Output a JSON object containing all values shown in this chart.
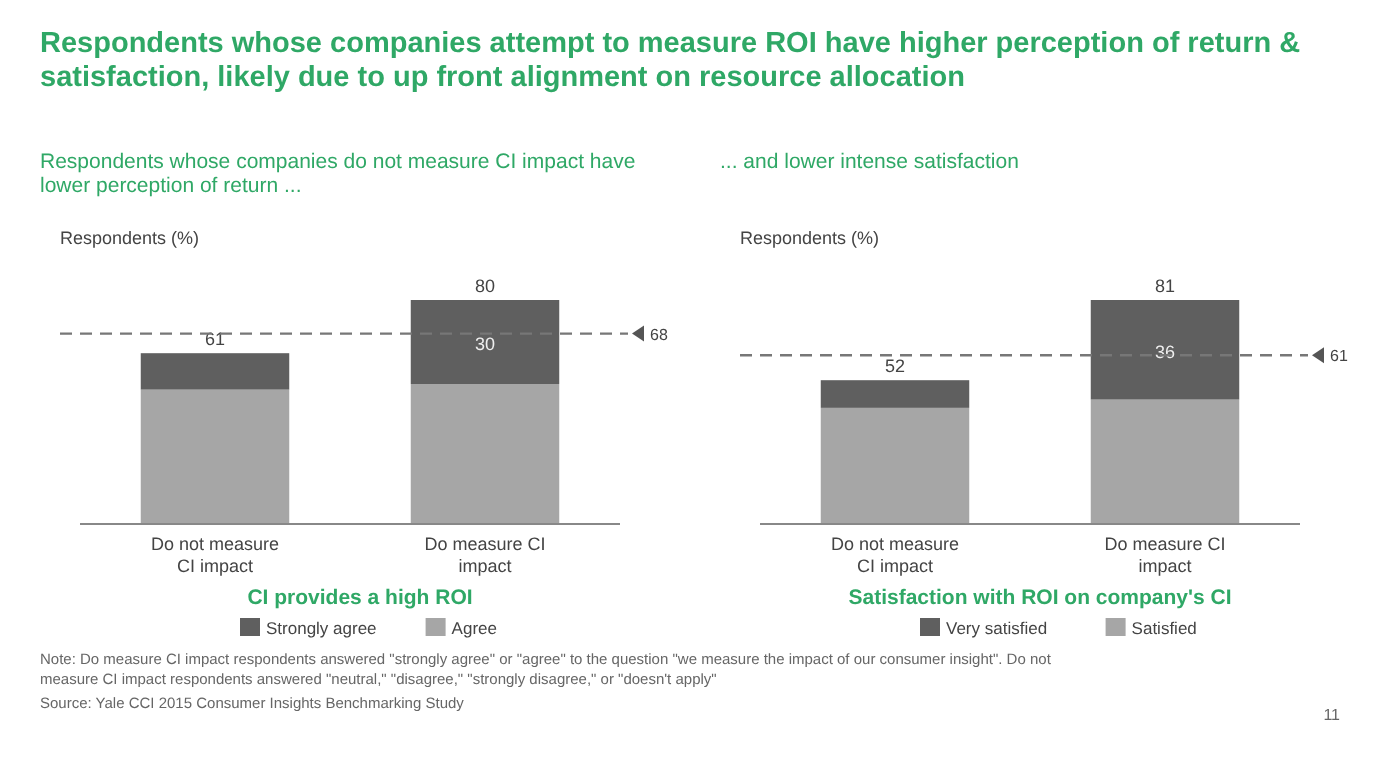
{
  "chart_data": [
    {
      "type": "bar",
      "stacked": true,
      "title": "Respondents whose companies attempt to measure ROI have higher perception of return & satisfaction, likely due to up front alignment on resource allocation",
      "subtitle": "Respondents whose companies do not measure CI impact have lower perception of return ...",
      "ylabel": "Respondents (%)",
      "xlabel": "CI provides a high ROI",
      "categories": [
        "Do not measure CI impact",
        "Do measure CI impact"
      ],
      "series": [
        {
          "name": "Agree",
          "color": "#a6a6a6",
          "values": [
            48,
            50
          ]
        },
        {
          "name": "Strongly agree",
          "color": "#5f5f5f",
          "values": [
            13,
            30
          ],
          "value_labels": [
            null,
            "30"
          ]
        }
      ],
      "totals": [
        "61",
        "80"
      ],
      "ref_lines": [
        {
          "axis": "y",
          "value": 68,
          "label": "68",
          "color": "#777777",
          "line_style": "dashed"
        }
      ],
      "legend": "bottom",
      "annotations": [
        "Note: Do measure CI impact respondents answered \"strongly agree\" or \"agree\" to the question \"we measure the impact of our consumer insight\". Do not measure CI impact respondents answered \"neutral,\" \"disagree,\" \"strongly disagree,\" or \"doesn't apply\"",
        "Source: Yale CCI 2015 Consumer Insights Benchmarking Study"
      ]
    },
    {
      "type": "bar",
      "stacked": true,
      "subtitle": "... and lower intense satisfaction",
      "ylabel": "Respondents (%)",
      "xlabel": "Satisfaction with ROI on company's CI",
      "categories": [
        "Do not measure CI impact",
        "Do measure CI impact"
      ],
      "series": [
        {
          "name": "Satisfied",
          "color": "#a6a6a6",
          "values": [
            42,
            45
          ]
        },
        {
          "name": "Very satisfied",
          "color": "#5f5f5f",
          "values": [
            10,
            36
          ],
          "value_labels": [
            null,
            "36"
          ]
        }
      ],
      "totals": [
        "52",
        "81"
      ],
      "ref_lines": [
        {
          "axis": "y",
          "value": 61,
          "label": "61",
          "color": "#777777",
          "line_style": "dashed"
        }
      ],
      "legend": "bottom",
      "annotations": [
        "11"
      ]
    }
  ]
}
